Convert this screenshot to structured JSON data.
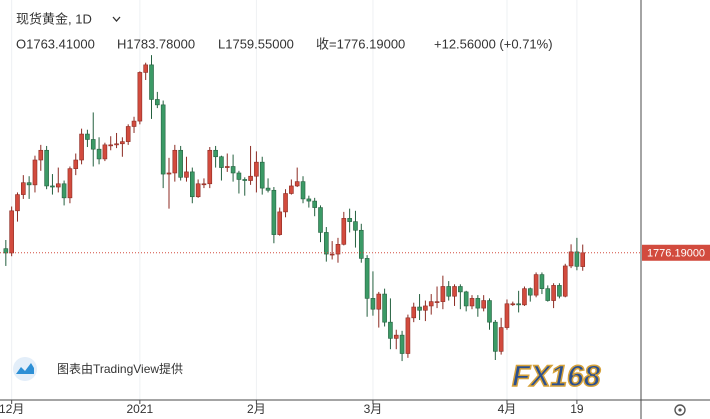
{
  "chart_data": {
    "type": "candlestick",
    "title": "现货黄金, 1D",
    "ohlc_text": [
      "O1763.41000",
      "H1783.78000",
      "L1759.55000",
      "收=1776.19000",
      "+12.56000 (+0.71%)"
    ],
    "watermark": "图表由TradingView提供",
    "logo": "FX168",
    "up_color": "#d24b3e",
    "down_color": "#3b9a66",
    "last_price": {
      "value": 1776.19,
      "label": "1776.19000"
    },
    "xlim": [
      -1,
      109
    ],
    "ylim": [
      1640,
      2010
    ],
    "xticks": [
      {
        "value": 1,
        "label": "12月"
      },
      {
        "value": 23,
        "label": "2021"
      },
      {
        "value": 43,
        "label": "2月"
      },
      {
        "value": 63,
        "label": "3月"
      },
      {
        "value": 86,
        "label": "4月"
      },
      {
        "value": 98,
        "label": "19"
      }
    ],
    "grid": true,
    "x": [
      0,
      1,
      2,
      3,
      4,
      5,
      6,
      7,
      8,
      9,
      10,
      11,
      12,
      13,
      14,
      15,
      16,
      17,
      18,
      19,
      20,
      21,
      22,
      23,
      24,
      25,
      26,
      27,
      28,
      29,
      30,
      31,
      32,
      33,
      34,
      35,
      36,
      37,
      38,
      39,
      40,
      41,
      42,
      43,
      44,
      45,
      46,
      47,
      48,
      49,
      50,
      51,
      52,
      53,
      54,
      55,
      56,
      57,
      58,
      59,
      60,
      61,
      62,
      63,
      64,
      65,
      66,
      67,
      68,
      69,
      70,
      71,
      72,
      73,
      74,
      75,
      76,
      77,
      78,
      79,
      80,
      81,
      82,
      83,
      84,
      85,
      86,
      87,
      88,
      89,
      90,
      91,
      92,
      93,
      94,
      95,
      96,
      97,
      98,
      99
    ],
    "open": [
      1780,
      1776,
      1815,
      1830,
      1841,
      1839,
      1862,
      1871,
      1838,
      1837,
      1840,
      1827,
      1854,
      1862,
      1886,
      1881,
      1872,
      1863,
      1876,
      1876,
      1877,
      1879,
      1893,
      1898,
      1943,
      1950,
      1918,
      1913,
      1849,
      1850,
      1871,
      1846,
      1851,
      1828,
      1840,
      1840,
      1871,
      1865,
      1855,
      1856,
      1850,
      1844,
      1843,
      1847,
      1860,
      1836,
      1834,
      1793,
      1814,
      1831,
      1838,
      1842,
      1826,
      1824,
      1818,
      1795,
      1775,
      1775,
      1784,
      1808,
      1805,
      1797,
      1771,
      1734,
      1724,
      1738,
      1712,
      1697,
      1700,
      1683,
      1716,
      1726,
      1723,
      1727,
      1731,
      1731,
      1745,
      1736,
      1745,
      1740,
      1727,
      1734,
      1725,
      1732,
      1712,
      1685,
      1707,
      1729,
      1729,
      1728,
      1743,
      1737,
      1756,
      1743,
      1732,
      1746,
      1736,
      1764,
      1777,
      1763.41
    ],
    "high": [
      1788,
      1819,
      1832,
      1848,
      1847,
      1866,
      1876,
      1875,
      1849,
      1855,
      1843,
      1856,
      1868,
      1891,
      1890,
      1906,
      1883,
      1878,
      1884,
      1887,
      1883,
      1895,
      1902,
      1944,
      1952,
      1959,
      1925,
      1917,
      1864,
      1876,
      1875,
      1865,
      1855,
      1844,
      1845,
      1874,
      1875,
      1866,
      1868,
      1867,
      1852,
      1846,
      1875,
      1870,
      1865,
      1845,
      1837,
      1818,
      1835,
      1844,
      1855,
      1847,
      1829,
      1827,
      1820,
      1800,
      1787,
      1790,
      1814,
      1817,
      1815,
      1803,
      1774,
      1759,
      1740,
      1743,
      1734,
      1705,
      1704,
      1719,
      1730,
      1738,
      1732,
      1738,
      1745,
      1755,
      1750,
      1747,
      1747,
      1741,
      1737,
      1737,
      1737,
      1734,
      1714,
      1716,
      1733,
      1731,
      1741,
      1745,
      1744,
      1758,
      1758,
      1746,
      1748,
      1748,
      1766,
      1784,
      1790,
      1783.78
    ],
    "low": [
      1764,
      1773,
      1805,
      1826,
      1826,
      1832,
      1852,
      1835,
      1830,
      1832,
      1820,
      1822,
      1848,
      1858,
      1874,
      1856,
      1858,
      1861,
      1871,
      1873,
      1865,
      1876,
      1887,
      1895,
      1936,
      1900,
      1910,
      1836,
      1817,
      1842,
      1843,
      1842,
      1822,
      1827,
      1836,
      1836,
      1855,
      1843,
      1851,
      1842,
      1831,
      1829,
      1839,
      1832,
      1830,
      1832,
      1785,
      1792,
      1809,
      1830,
      1837,
      1822,
      1818,
      1810,
      1786,
      1768,
      1770,
      1767,
      1783,
      1795,
      1781,
      1767,
      1717,
      1718,
      1707,
      1708,
      1687,
      1687,
      1676,
      1679,
      1712,
      1714,
      1713,
      1719,
      1725,
      1724,
      1732,
      1727,
      1724,
      1722,
      1724,
      1717,
      1722,
      1705,
      1677,
      1682,
      1705,
      1727,
      1721,
      1727,
      1731,
      1735,
      1738,
      1731,
      1725,
      1734,
      1735,
      1762,
      1760,
      1759.55
    ],
    "close": [
      1776,
      1815,
      1830,
      1841,
      1839,
      1862,
      1871,
      1838,
      1837,
      1840,
      1827,
      1854,
      1862,
      1886,
      1881,
      1872,
      1863,
      1876,
      1876,
      1877,
      1879,
      1893,
      1898,
      1943,
      1950,
      1918,
      1913,
      1849,
      1850,
      1871,
      1846,
      1851,
      1828,
      1840,
      1840,
      1871,
      1865,
      1855,
      1856,
      1850,
      1844,
      1843,
      1847,
      1860,
      1836,
      1834,
      1793,
      1814,
      1831,
      1838,
      1842,
      1826,
      1824,
      1818,
      1795,
      1775,
      1775,
      1784,
      1808,
      1805,
      1797,
      1771,
      1734,
      1724,
      1738,
      1712,
      1697,
      1700,
      1683,
      1716,
      1726,
      1723,
      1727,
      1731,
      1731,
      1745,
      1736,
      1745,
      1740,
      1727,
      1734,
      1725,
      1732,
      1712,
      1685,
      1707,
      1729,
      1729,
      1728,
      1743,
      1737,
      1756,
      1743,
      1732,
      1746,
      1736,
      1764,
      1777,
      1763.63,
      1776.19
    ]
  }
}
